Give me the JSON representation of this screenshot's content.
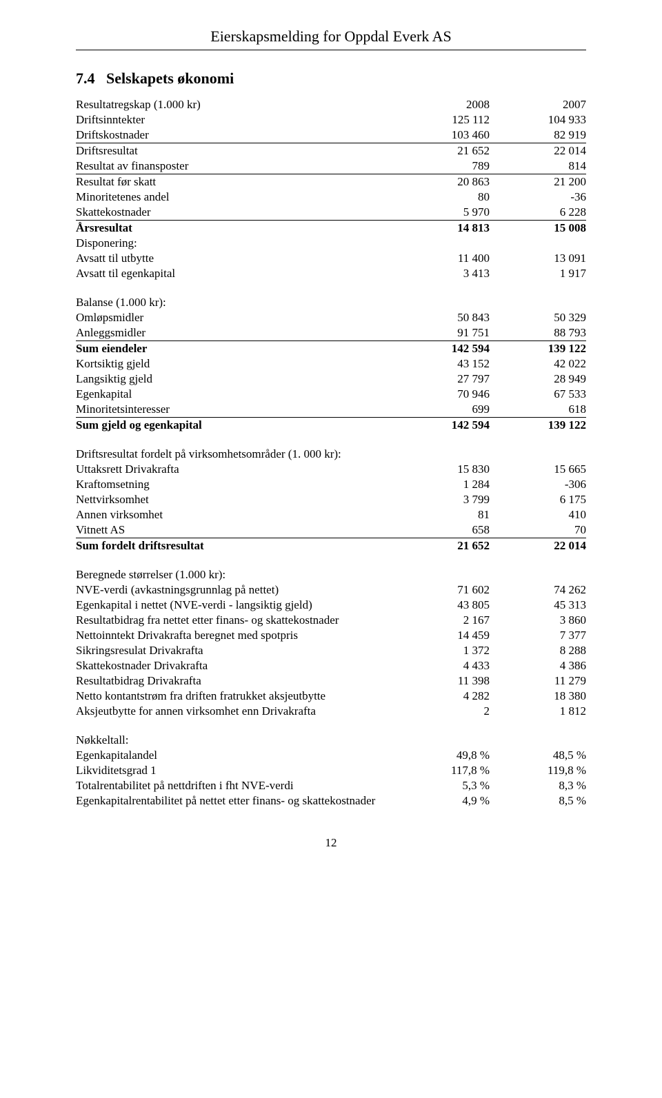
{
  "header": {
    "title": "Eierskapsmelding for Oppdal Everk AS"
  },
  "section": {
    "number": "7.4",
    "title": "Selskapets økonomi"
  },
  "tables": {
    "resultat": {
      "caption": "Resultatregskap (1.000 kr)",
      "year1": "2008",
      "year2": "2007",
      "rows": [
        {
          "label": "Driftsinntekter",
          "v1": "125 112",
          "v2": "104 933"
        },
        {
          "label": "Driftskostnader",
          "v1": "103 460",
          "v2": "82 919",
          "underline": true
        },
        {
          "label": "Driftsresultat",
          "v1": "21 652",
          "v2": "22 014"
        },
        {
          "label": "Resultat av finansposter",
          "v1": "789",
          "v2": "814",
          "underline": true
        },
        {
          "label": "Resultat før skatt",
          "v1": "20 863",
          "v2": "21 200"
        },
        {
          "label": "Minoritetenes andel",
          "v1": "80",
          "v2": "-36"
        },
        {
          "label": "Skattekostnader",
          "v1": "5 970",
          "v2": "6 228",
          "underline": true
        },
        {
          "label": "Årsresultat",
          "v1": "14 813",
          "v2": "15 008",
          "bold": true
        },
        {
          "label": "Disponering:",
          "v1": "",
          "v2": ""
        },
        {
          "label": "Avsatt til utbytte",
          "v1": "11 400",
          "v2": "13 091"
        },
        {
          "label": "Avsatt til egenkapital",
          "v1": "3 413",
          "v2": "1 917"
        }
      ]
    },
    "balanse": {
      "caption": "Balanse (1.000 kr):",
      "rows": [
        {
          "label": "Omløpsmidler",
          "v1": "50 843",
          "v2": "50 329"
        },
        {
          "label": "Anleggsmidler",
          "v1": "91 751",
          "v2": "88 793",
          "underline": true
        },
        {
          "label": "Sum eiendeler",
          "v1": "142 594",
          "v2": "139 122",
          "bold": true
        },
        {
          "label": "Kortsiktig gjeld",
          "v1": "43 152",
          "v2": "42 022"
        },
        {
          "label": "Langsiktig gjeld",
          "v1": "27 797",
          "v2": "28 949"
        },
        {
          "label": "Egenkapital",
          "v1": "70 946",
          "v2": "67 533"
        },
        {
          "label": "Minoritetsinteresser",
          "v1": "699",
          "v2": "618",
          "underline": true
        },
        {
          "label": "Sum gjeld og egenkapital",
          "v1": "142 594",
          "v2": "139 122",
          "bold": true
        }
      ]
    },
    "driftsresultat": {
      "caption": "Driftsresultat fordelt på virksomhetsområder (1. 000 kr):",
      "rows": [
        {
          "label": "Uttaksrett Drivakrafta",
          "v1": "15 830",
          "v2": "15 665"
        },
        {
          "label": "Kraftomsetning",
          "v1": "1 284",
          "v2": "-306"
        },
        {
          "label": "Nettvirksomhet",
          "v1": "3 799",
          "v2": "6 175"
        },
        {
          "label": "Annen virksomhet",
          "v1": "81",
          "v2": "410"
        },
        {
          "label": "Vitnett AS",
          "v1": "658",
          "v2": "70",
          "underline": true
        },
        {
          "label": "Sum fordelt driftsresultat",
          "v1": "21 652",
          "v2": "22 014",
          "bold": true
        }
      ]
    },
    "beregnede": {
      "caption": "Beregnede størrelser (1.000 kr):",
      "rows": [
        {
          "label": "NVE-verdi (avkastningsgrunnlag på nettet)",
          "v1": "71 602",
          "v2": "74 262"
        },
        {
          "label": "Egenkapital i nettet (NVE-verdi - langsiktig gjeld)",
          "v1": "43 805",
          "v2": "45 313"
        },
        {
          "label": "Resultatbidrag fra nettet etter finans- og skattekostnader",
          "v1": "2 167",
          "v2": "3 860"
        },
        {
          "label": "Nettoinntekt Drivakrafta beregnet med spotpris",
          "v1": "14 459",
          "v2": "7 377"
        },
        {
          "label": "Sikringsresulat Drivakrafta",
          "v1": "1 372",
          "v2": "8 288"
        },
        {
          "label": "Skattekostnader Drivakrafta",
          "v1": "4 433",
          "v2": "4 386"
        },
        {
          "label": "Resultatbidrag Drivakrafta",
          "v1": "11 398",
          "v2": "11 279"
        },
        {
          "label": "Netto kontantstrøm fra driften fratrukket aksjeutbytte",
          "v1": "4 282",
          "v2": "18 380"
        },
        {
          "label": "Aksjeutbytte for annen virksomhet enn Drivakrafta",
          "v1": "2",
          "v2": "1 812"
        }
      ]
    },
    "nokkeltall": {
      "caption": "Nøkkeltall:",
      "rows": [
        {
          "label": "Egenkapitalandel",
          "v1": "49,8 %",
          "v2": "48,5 %"
        },
        {
          "label": "Likviditetsgrad 1",
          "v1": "117,8 %",
          "v2": "119,8 %"
        },
        {
          "label": "Totalrentabilitet på nettdriften i fht NVE-verdi",
          "v1": "5,3 %",
          "v2": "8,3 %"
        },
        {
          "label": "Egenkapitalrentabilitet på nettet etter finans- og skattekostnader",
          "v1": "4,9 %",
          "v2": "8,5 %"
        }
      ]
    }
  },
  "pageNumber": "12"
}
